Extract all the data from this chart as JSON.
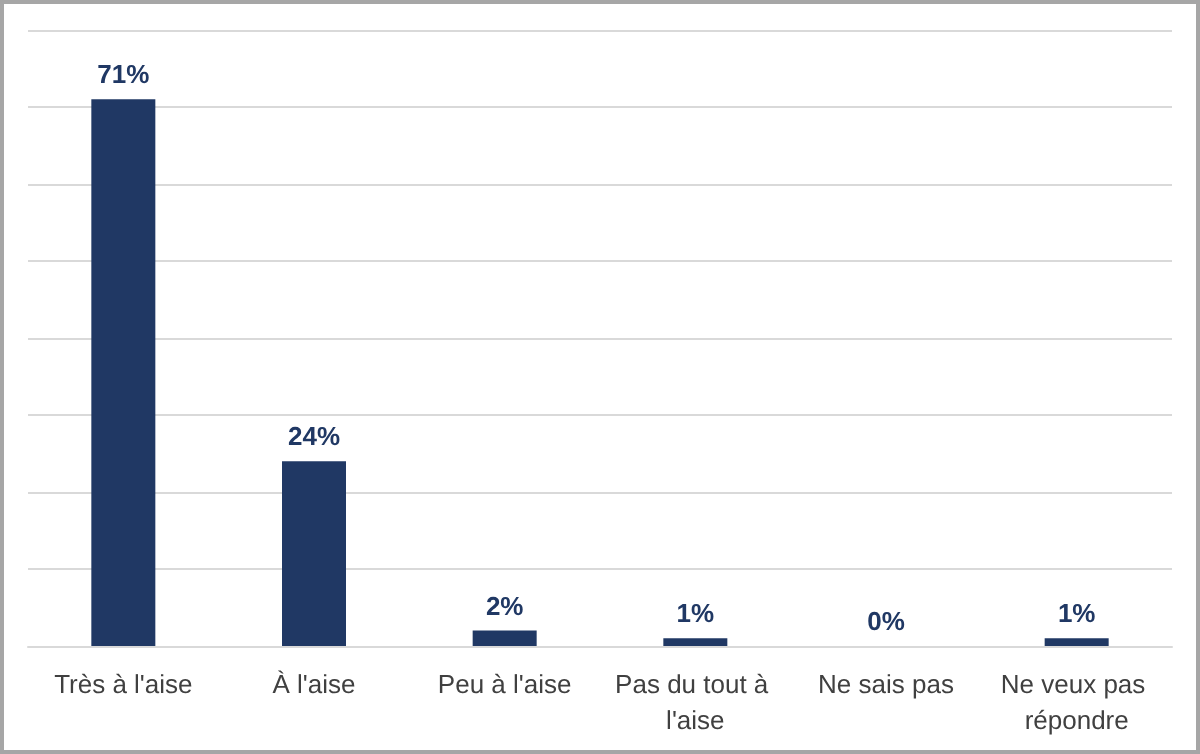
{
  "chart_data": {
    "type": "bar",
    "categories": [
      "Très à l'aise",
      "À l'aise",
      "Peu à l'aise",
      "Pas du tout à l'aise",
      "Ne sais pas",
      "Ne veux pas répondre"
    ],
    "values": [
      71,
      24,
      2,
      1,
      0,
      1
    ],
    "color": "#203864",
    "value_labels": [
      "71%",
      "24%",
      "2%",
      "1%",
      "0%",
      "1%"
    ],
    "ylim": [
      0,
      80
    ],
    "yticks": [
      {
        "value": 0,
        "label": null
      },
      {
        "value": 10,
        "label": null
      },
      {
        "value": 20,
        "label": null
      },
      {
        "value": 30,
        "label": null
      },
      {
        "value": 40,
        "label": null
      },
      {
        "value": 50,
        "label": null
      },
      {
        "value": 60,
        "label": null
      },
      {
        "value": 70,
        "label": null
      },
      {
        "value": 80,
        "label": null
      }
    ],
    "grid": "y",
    "tick_labels": "x"
  }
}
